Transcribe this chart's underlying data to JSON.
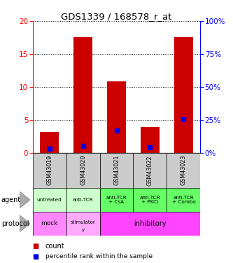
{
  "title": "GDS1339 / 168578_r_at",
  "samples": [
    "GSM43019",
    "GSM43020",
    "GSM43021",
    "GSM43022",
    "GSM43023"
  ],
  "count_values": [
    3.2,
    17.5,
    10.8,
    3.9,
    17.5
  ],
  "percentile_left": [
    0.55,
    1.05,
    3.4,
    0.85,
    5.1
  ],
  "ylim_left": [
    0,
    20
  ],
  "ylim_right": [
    0,
    100
  ],
  "yticks_left": [
    0,
    5,
    10,
    15,
    20
  ],
  "yticks_right": [
    0,
    25,
    50,
    75,
    100
  ],
  "bar_color": "#cc0000",
  "dot_color": "#0000ee",
  "agent_labels": [
    "untreated",
    "anti-TCR",
    "anti-TCR\n+ CsA",
    "anti-TCR\n+ PKCi",
    "anti-TCR\n+ Combo"
  ],
  "agent_bg_light": "#ccffcc",
  "agent_bg_dark": "#66ff66",
  "sample_bg": "#cccccc",
  "protocol_mock_bg": "#ff88ff",
  "protocol_stim_bg": "#ffaaff",
  "protocol_inhib_bg": "#ff44ff"
}
